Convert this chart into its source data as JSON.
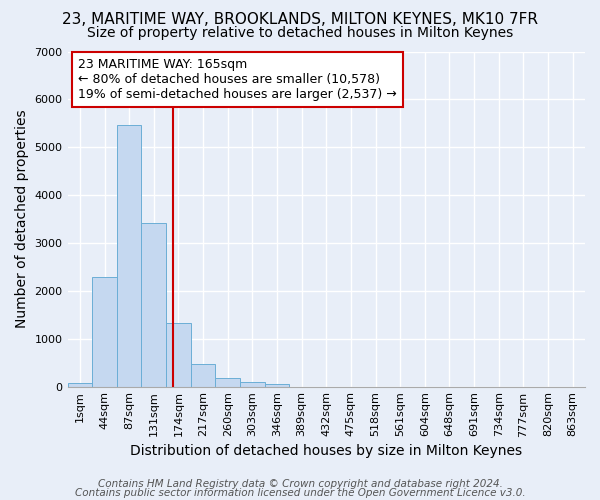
{
  "title": "23, MARITIME WAY, BROOKLANDS, MILTON KEYNES, MK10 7FR",
  "subtitle": "Size of property relative to detached houses in Milton Keynes",
  "xlabel": "Distribution of detached houses by size in Milton Keynes",
  "ylabel": "Number of detached properties",
  "categories": [
    "1sqm",
    "44sqm",
    "87sqm",
    "131sqm",
    "174sqm",
    "217sqm",
    "260sqm",
    "303sqm",
    "346sqm",
    "389sqm",
    "432sqm",
    "475sqm",
    "518sqm",
    "561sqm",
    "604sqm",
    "648sqm",
    "691sqm",
    "734sqm",
    "777sqm",
    "820sqm",
    "863sqm"
  ],
  "values": [
    75,
    2280,
    5460,
    3420,
    1320,
    470,
    185,
    90,
    55,
    0,
    0,
    0,
    0,
    0,
    0,
    0,
    0,
    0,
    0,
    0,
    0
  ],
  "bar_color": "#c5d8f0",
  "bar_edge_color": "#6baed6",
  "vline_color": "#cc0000",
  "annotation_text": "23 MARITIME WAY: 165sqm\n← 80% of detached houses are smaller (10,578)\n19% of semi-detached houses are larger (2,537) →",
  "annotation_box_color": "#ffffff",
  "annotation_box_edge": "#cc0000",
  "ylim": [
    0,
    7000
  ],
  "yticks": [
    0,
    1000,
    2000,
    3000,
    4000,
    5000,
    6000,
    7000
  ],
  "footer1": "Contains HM Land Registry data © Crown copyright and database right 2024.",
  "footer2": "Contains public sector information licensed under the Open Government Licence v3.0.",
  "bg_color": "#e8eef8",
  "grid_color": "#ffffff",
  "title_fontsize": 11,
  "subtitle_fontsize": 10,
  "axis_label_fontsize": 10,
  "tick_fontsize": 8,
  "annotation_fontsize": 9,
  "footer_fontsize": 7.5
}
